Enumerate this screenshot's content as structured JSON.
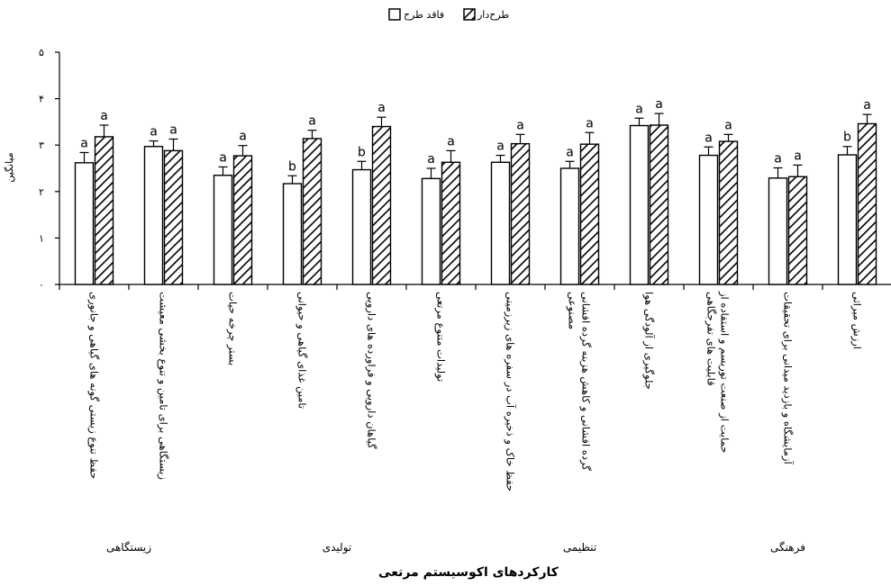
{
  "chart_data": {
    "type": "bar",
    "ylabel": "میانگین",
    "xlabel": "کارکردهای اکوسیستم مرتعی",
    "ylim": [
      0,
      5
    ],
    "yticks": [
      0,
      1,
      2,
      3,
      4,
      5
    ],
    "ytick_labels": [
      "۰",
      "۱",
      "۲",
      "۳",
      "۴",
      "۵"
    ],
    "legend": {
      "position": "top-center"
    },
    "categories": [
      "حفظ تنوع زیستی گونه های گیاهی و جانوری",
      "زیستگاهی برای تامین و تنوع بخشی معیشت",
      "بستر چرخه حیات",
      "تامین غذای گیاهی و حیوانی",
      "گیاهان دارویی و فراورده های دارویی",
      "تولیدات متنوع مرتعی",
      "حفظ خاک و ذخیره آب در سفره های زیرزمینی",
      "گرده افشانی و کاهش هزینه گرده افشانی مصنوعی",
      "جلوگیری از آلودگی هوا",
      "حمایت از صنعت توریسم و استفاده از قابلیت های تفرجگاهی",
      "آزمایشگاه و بازدید میدانی برای تحقیقات",
      "ارزش میراثی"
    ],
    "groups": [
      {
        "label": "زیستگاهی",
        "categories": 2
      },
      {
        "label": "تولیدی",
        "categories": 4
      },
      {
        "label": "تنظیمی",
        "categories": 3
      },
      {
        "label": "فرهنگی",
        "categories": 3
      }
    ],
    "series": [
      {
        "name": "فاقد طرح",
        "pattern": "plain",
        "values": [
          2.62,
          2.97,
          2.35,
          2.17,
          2.47,
          2.28,
          2.63,
          2.5,
          3.42,
          2.78,
          2.29,
          2.79
        ],
        "errors": [
          0.22,
          0.12,
          0.18,
          0.17,
          0.18,
          0.22,
          0.15,
          0.15,
          0.16,
          0.18,
          0.22,
          0.18
        ],
        "labels": [
          "a",
          "a",
          "a",
          "b",
          "b",
          "a",
          "a",
          "a",
          "a",
          "a",
          "a",
          "b"
        ]
      },
      {
        "name": "طرح‌دار",
        "pattern": "hatched",
        "values": [
          3.18,
          2.88,
          2.77,
          3.14,
          3.4,
          2.63,
          3.03,
          3.02,
          3.43,
          3.08,
          2.32,
          3.46
        ],
        "errors": [
          0.25,
          0.25,
          0.22,
          0.18,
          0.2,
          0.25,
          0.2,
          0.25,
          0.25,
          0.15,
          0.25,
          0.2
        ],
        "labels": [
          "a",
          "a",
          "a",
          "a",
          "a",
          "a",
          "a",
          "a",
          "a",
          "a",
          "a",
          "a"
        ]
      }
    ]
  }
}
